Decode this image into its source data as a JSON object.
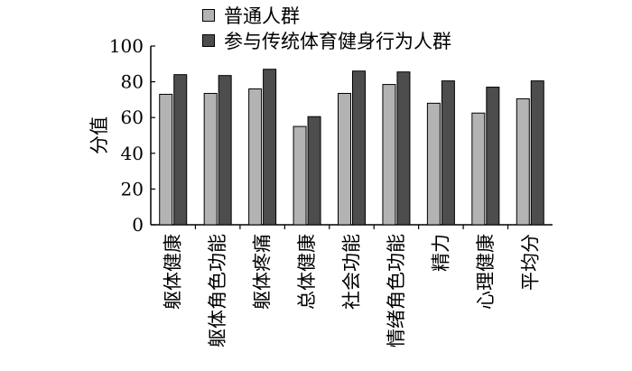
{
  "chart_data": {
    "type": "bar",
    "title": "",
    "xlabel": "",
    "ylabel": "分值",
    "ylim": [
      0,
      100
    ],
    "yticks": [
      0,
      20,
      40,
      60,
      80,
      100
    ],
    "grid": false,
    "legend_position": "top",
    "categories": [
      "躯体健康",
      "躯体角色功能",
      "躯体疼痛",
      "总体健康",
      "社会功能",
      "情绪角色功能",
      "精力",
      "心理健康",
      "平均分"
    ],
    "series": [
      {
        "name": "普通人群",
        "color": "#b3b3b3",
        "values": [
          73,
          73.5,
          76,
          55,
          73.5,
          78.5,
          68,
          62.5,
          70.5
        ]
      },
      {
        "name": "参与传统体育健身行为人群",
        "color": "#4d4d4d",
        "values": [
          84,
          83.5,
          87,
          60.5,
          86,
          85.5,
          80.5,
          77,
          80.5
        ]
      }
    ]
  }
}
